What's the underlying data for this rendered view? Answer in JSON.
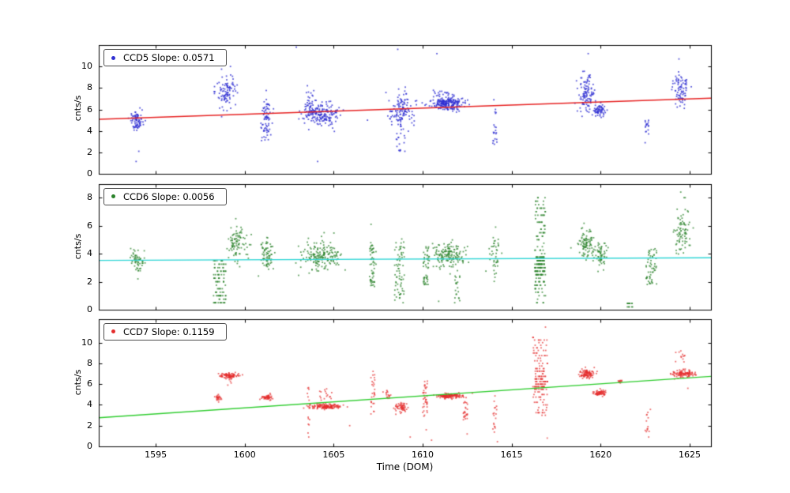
{
  "figure": {
    "background": "#ffffff"
  },
  "chart_data": {
    "type": "scatter",
    "xlabel": "Time (DOM)",
    "x_range": [
      1591.8,
      1626.2
    ],
    "x_ticks": [
      1595,
      1600,
      1605,
      1610,
      1615,
      1620,
      1625
    ],
    "grid": false,
    "legend_position": "upper left",
    "cluster_format": "['g'|'u', x_center, x_spread, y_center, y_spread, n] gaussian/uniform blob; ['s', x_center, x_spread, y_min, y_max, y_step, n] striated band of horizontal dashes",
    "panels": [
      {
        "name": "CCD5",
        "legend": "CCD5 Slope: 0.0571",
        "slope": 0.0571,
        "ylabel": "cnts/s",
        "y_range": [
          0,
          12
        ],
        "y_ticks": [
          0,
          2,
          4,
          6,
          8,
          10
        ],
        "point_color": "rgba(48,48,210,0.8)",
        "marker_color": "#3030d2",
        "fit_color": "#e62222",
        "fit": {
          "x": [
            1591.8,
            1626.2
          ],
          "y": [
            5.08,
            7.05
          ]
        },
        "clusters": [
          [
            "g",
            1593.95,
            0.18,
            5.15,
            0.45,
            65
          ],
          [
            "u",
            1593.95,
            0.2,
            4.35,
            0.35,
            12
          ],
          [
            "g",
            1599.0,
            0.25,
            7.6,
            0.75,
            95
          ],
          [
            "g",
            1601.2,
            0.18,
            5.0,
            0.95,
            75
          ],
          [
            "g",
            1604.3,
            0.55,
            5.6,
            0.55,
            185
          ],
          [
            "g",
            1603.7,
            0.15,
            6.4,
            0.7,
            35
          ],
          [
            "g",
            1608.8,
            0.33,
            5.8,
            0.75,
            125
          ],
          [
            "u",
            1608.8,
            0.3,
            3.3,
            1.2,
            18
          ],
          [
            "g",
            1611.4,
            0.45,
            6.55,
            0.3,
            200
          ],
          [
            "g",
            1611.2,
            0.3,
            7.0,
            0.45,
            35
          ],
          [
            "u",
            1614.05,
            0.12,
            4.4,
            1.7,
            20
          ],
          [
            "g",
            1619.2,
            0.22,
            7.5,
            1.0,
            105
          ],
          [
            "g",
            1619.9,
            0.18,
            5.9,
            0.4,
            65
          ],
          [
            "u",
            1622.6,
            0.1,
            4.4,
            0.7,
            16
          ],
          [
            "g",
            1624.5,
            0.2,
            8.0,
            0.85,
            80
          ]
        ],
        "outliers": [
          [
            1593.9,
            1.15
          ],
          [
            1594.05,
            2.1
          ],
          [
            1599.2,
            10.0
          ],
          [
            1602.9,
            11.8
          ],
          [
            1604.1,
            1.15
          ],
          [
            1606.9,
            5.0
          ],
          [
            1608.6,
            11.6
          ],
          [
            1609.0,
            2.1
          ],
          [
            1610.8,
            11.2
          ],
          [
            1614.0,
            6.9
          ],
          [
            1619.3,
            11.2
          ],
          [
            1622.5,
            2.9
          ],
          [
            1624.4,
            10.7
          ],
          [
            1624.7,
            6.1
          ]
        ]
      },
      {
        "name": "CCD6",
        "legend": "CCD6 Slope: 0.0056",
        "slope": 0.0056,
        "ylabel": "cnts/s",
        "y_range": [
          0,
          9
        ],
        "y_ticks": [
          0,
          2,
          4,
          6,
          8
        ],
        "point_color": "rgba(42,130,42,0.75)",
        "marker_color": "#2a822a",
        "fit_color": "#2fd5d5",
        "fit": {
          "x": [
            1591.8,
            1626.2
          ],
          "y": [
            3.52,
            3.71
          ]
        },
        "clusters": [
          [
            "g",
            1593.95,
            0.18,
            3.5,
            0.4,
            55
          ],
          [
            "s",
            1598.6,
            0.35,
            0.5,
            3.5,
            0.25,
            95
          ],
          [
            "g",
            1599.6,
            0.28,
            4.8,
            0.65,
            90
          ],
          [
            "g",
            1601.2,
            0.2,
            4.0,
            0.6,
            70
          ],
          [
            "g",
            1604.3,
            0.55,
            3.8,
            0.55,
            175
          ],
          [
            "u",
            1607.2,
            0.18,
            3.25,
            1.65,
            55
          ],
          [
            "u",
            1608.7,
            0.28,
            2.9,
            2.3,
            70
          ],
          [
            "u",
            1610.2,
            0.18,
            3.05,
            1.5,
            48
          ],
          [
            "g",
            1611.5,
            0.45,
            3.9,
            0.45,
            155
          ],
          [
            "u",
            1611.95,
            0.15,
            1.5,
            1.0,
            18
          ],
          [
            "g",
            1614.05,
            0.15,
            3.8,
            0.7,
            42
          ],
          [
            "s",
            1616.6,
            0.3,
            0.5,
            8.0,
            0.25,
            130
          ],
          [
            "s",
            1616.6,
            0.28,
            2.5,
            3.75,
            0.25,
            85
          ],
          [
            "g",
            1619.2,
            0.22,
            4.8,
            0.55,
            88
          ],
          [
            "g",
            1620.0,
            0.18,
            3.95,
            0.45,
            60
          ],
          [
            "s",
            1621.65,
            0.15,
            0.2,
            0.45,
            0.25,
            14
          ],
          [
            "u",
            1622.85,
            0.3,
            3.1,
            1.3,
            58
          ],
          [
            "g",
            1624.6,
            0.22,
            5.6,
            0.75,
            80
          ]
        ],
        "outliers": [
          [
            1594.0,
            2.2
          ],
          [
            1599.5,
            6.5
          ],
          [
            1607.1,
            6.1
          ],
          [
            1608.9,
            0.5
          ],
          [
            1610.9,
            0.6
          ],
          [
            1611.8,
            0.5
          ],
          [
            1614.1,
            5.9
          ],
          [
            1624.5,
            8.4
          ],
          [
            1624.75,
            8.0
          ]
        ]
      },
      {
        "name": "CCD7",
        "legend": "CCD7 Slope: 0.1159",
        "slope": 0.1159,
        "ylabel": "cnts/s",
        "y_range": [
          0,
          12.3
        ],
        "y_ticks": [
          0,
          2,
          4,
          6,
          8,
          10
        ],
        "point_color": "rgba(228,45,45,0.7)",
        "marker_color": "#e42d2d",
        "fit_color": "#2ecc2e",
        "fit": {
          "x": [
            1591.8,
            1626.2
          ],
          "y": [
            2.76,
            6.75
          ]
        },
        "clusters": [
          [
            "g",
            1598.5,
            0.08,
            4.7,
            0.15,
            28
          ],
          [
            "g",
            1599.1,
            0.25,
            6.85,
            0.12,
            90
          ],
          [
            "g",
            1599.05,
            0.2,
            6.5,
            0.25,
            14
          ],
          [
            "g",
            1601.25,
            0.15,
            4.72,
            0.12,
            55
          ],
          [
            "u",
            1603.6,
            0.08,
            3.5,
            2.5,
            15
          ],
          [
            "g",
            1604.55,
            0.45,
            3.85,
            0.12,
            150
          ],
          [
            "u",
            1604.5,
            0.4,
            4.95,
            0.6,
            16
          ],
          [
            "u",
            1607.2,
            0.12,
            5.2,
            2.1,
            28
          ],
          [
            "g",
            1608.0,
            0.08,
            4.8,
            0.35,
            16
          ],
          [
            "g",
            1608.8,
            0.2,
            3.7,
            0.22,
            58
          ],
          [
            "u",
            1610.15,
            0.15,
            4.6,
            1.7,
            38
          ],
          [
            "g",
            1611.5,
            0.4,
            4.85,
            0.12,
            150
          ],
          [
            "u",
            1612.4,
            0.12,
            3.4,
            1.0,
            24
          ],
          [
            "u",
            1614.05,
            0.12,
            3.2,
            2.2,
            18
          ],
          [
            "s",
            1616.6,
            0.42,
            3.0,
            10.5,
            0.25,
            115
          ],
          [
            "s",
            1616.6,
            0.3,
            5.5,
            7.5,
            0.25,
            55
          ],
          [
            "g",
            1619.25,
            0.22,
            7.0,
            0.22,
            100
          ],
          [
            "g",
            1619.95,
            0.18,
            5.15,
            0.14,
            70
          ],
          [
            "g",
            1621.1,
            0.08,
            6.25,
            0.12,
            12
          ],
          [
            "u",
            1622.65,
            0.15,
            2.5,
            1.3,
            13
          ],
          [
            "g",
            1624.6,
            0.32,
            7.0,
            0.2,
            110
          ],
          [
            "u",
            1624.45,
            0.28,
            8.8,
            0.8,
            12
          ]
        ],
        "outliers": [
          [
            1603.6,
            0.9
          ],
          [
            1605.9,
            2.0
          ],
          [
            1609.3,
            0.9
          ],
          [
            1610.2,
            1.6
          ],
          [
            1610.5,
            0.6
          ],
          [
            1612.5,
            1.2
          ],
          [
            1614.2,
            0.45
          ],
          [
            1616.9,
            11.5
          ],
          [
            1617.0,
            0.8
          ],
          [
            1622.7,
            0.9
          ],
          [
            1624.9,
            5.6
          ],
          [
            1625.3,
            7.0
          ]
        ]
      }
    ]
  }
}
